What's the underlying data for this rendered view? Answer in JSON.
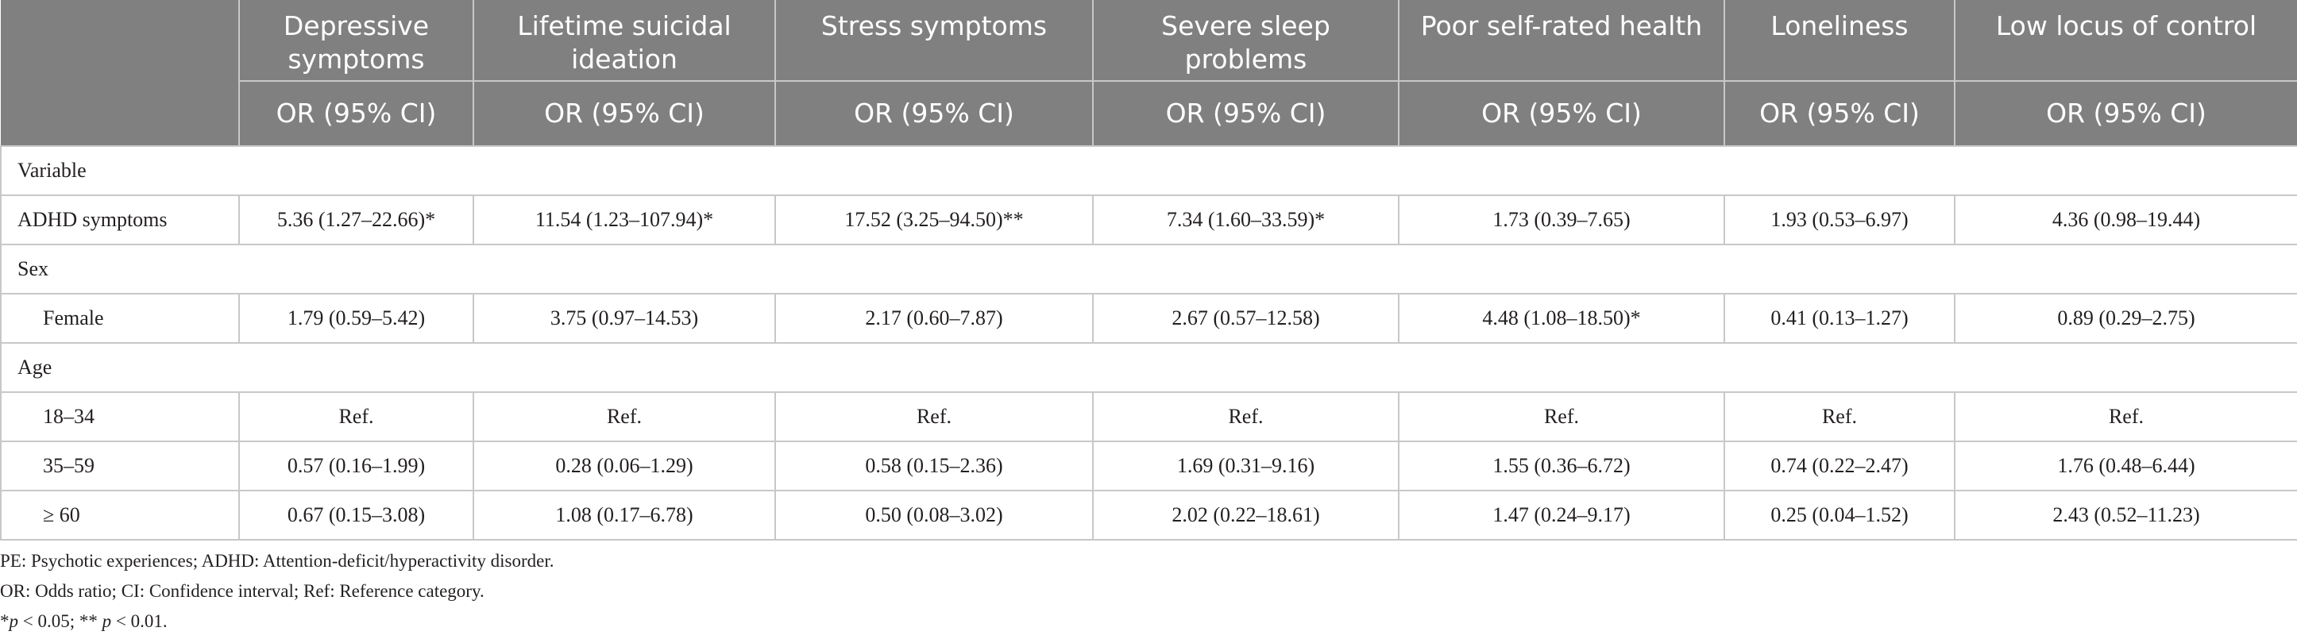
{
  "table": {
    "columns": [
      {
        "name": "Depressive symptoms",
        "sub": "OR (95% CI)"
      },
      {
        "name": "Lifetime suicidal ideation",
        "sub": "OR (95% CI)"
      },
      {
        "name": "Stress symptoms",
        "sub": "OR (95% CI)"
      },
      {
        "name": "Severe sleep problems",
        "sub": "OR (95% CI)"
      },
      {
        "name": "Poor self-rated health",
        "sub": "OR (95% CI)"
      },
      {
        "name": "Loneliness",
        "sub": "OR (95% CI)"
      },
      {
        "name": "Low locus of control",
        "sub": "OR (95% CI)"
      }
    ],
    "sections": {
      "variable": "Variable",
      "sex": "Sex",
      "age": "Age"
    },
    "rows": {
      "adhd": {
        "label": "ADHD symptoms",
        "cells": [
          "5.36 (1.27–22.66)*",
          "11.54 (1.23–107.94)*",
          "17.52 (3.25–94.50)**",
          "7.34 (1.60–33.59)*",
          "1.73 (0.39–7.65)",
          "1.93 (0.53–6.97)",
          "4.36 (0.98–19.44)"
        ]
      },
      "female": {
        "label": "Female",
        "cells": [
          "1.79 (0.59–5.42)",
          "3.75 (0.97–14.53)",
          "2.17 (0.60–7.87)",
          "2.67 (0.57–12.58)",
          "4.48 (1.08–18.50)*",
          "0.41 (0.13–1.27)",
          "0.89 (0.29–2.75)"
        ]
      },
      "age18": {
        "label": "18–34",
        "cells": [
          "Ref.",
          "Ref.",
          "Ref.",
          "Ref.",
          "Ref.",
          "Ref.",
          "Ref."
        ]
      },
      "age35": {
        "label": "35–59",
        "cells": [
          "0.57 (0.16–1.99)",
          "0.28 (0.06–1.29)",
          "0.58 (0.15–2.36)",
          "1.69 (0.31–9.16)",
          "1.55 (0.36–6.72)",
          "0.74 (0.22–2.47)",
          "1.76 (0.48–6.44)"
        ]
      },
      "age60": {
        "label": "≥ 60",
        "cells": [
          "0.67 (0.15–3.08)",
          "1.08 (0.17–6.78)",
          "0.50 (0.08–3.02)",
          "2.02 (0.22–18.61)",
          "1.47 (0.24–9.17)",
          "0.25 (0.04–1.52)",
          "2.43 (0.52–11.23)"
        ]
      }
    }
  },
  "notes": {
    "line1": "PE: Psychotic experiences; ADHD: Attention-deficit/hyperactivity disorder.",
    "line2": "OR: Odds ratio; CI: Confidence interval; Ref: Reference category.",
    "line3_star1": "*",
    "line3_p1": "p",
    "line3_a": " < 0.05; ** ",
    "line3_p2": "p",
    "line3_b": " < 0.01."
  }
}
